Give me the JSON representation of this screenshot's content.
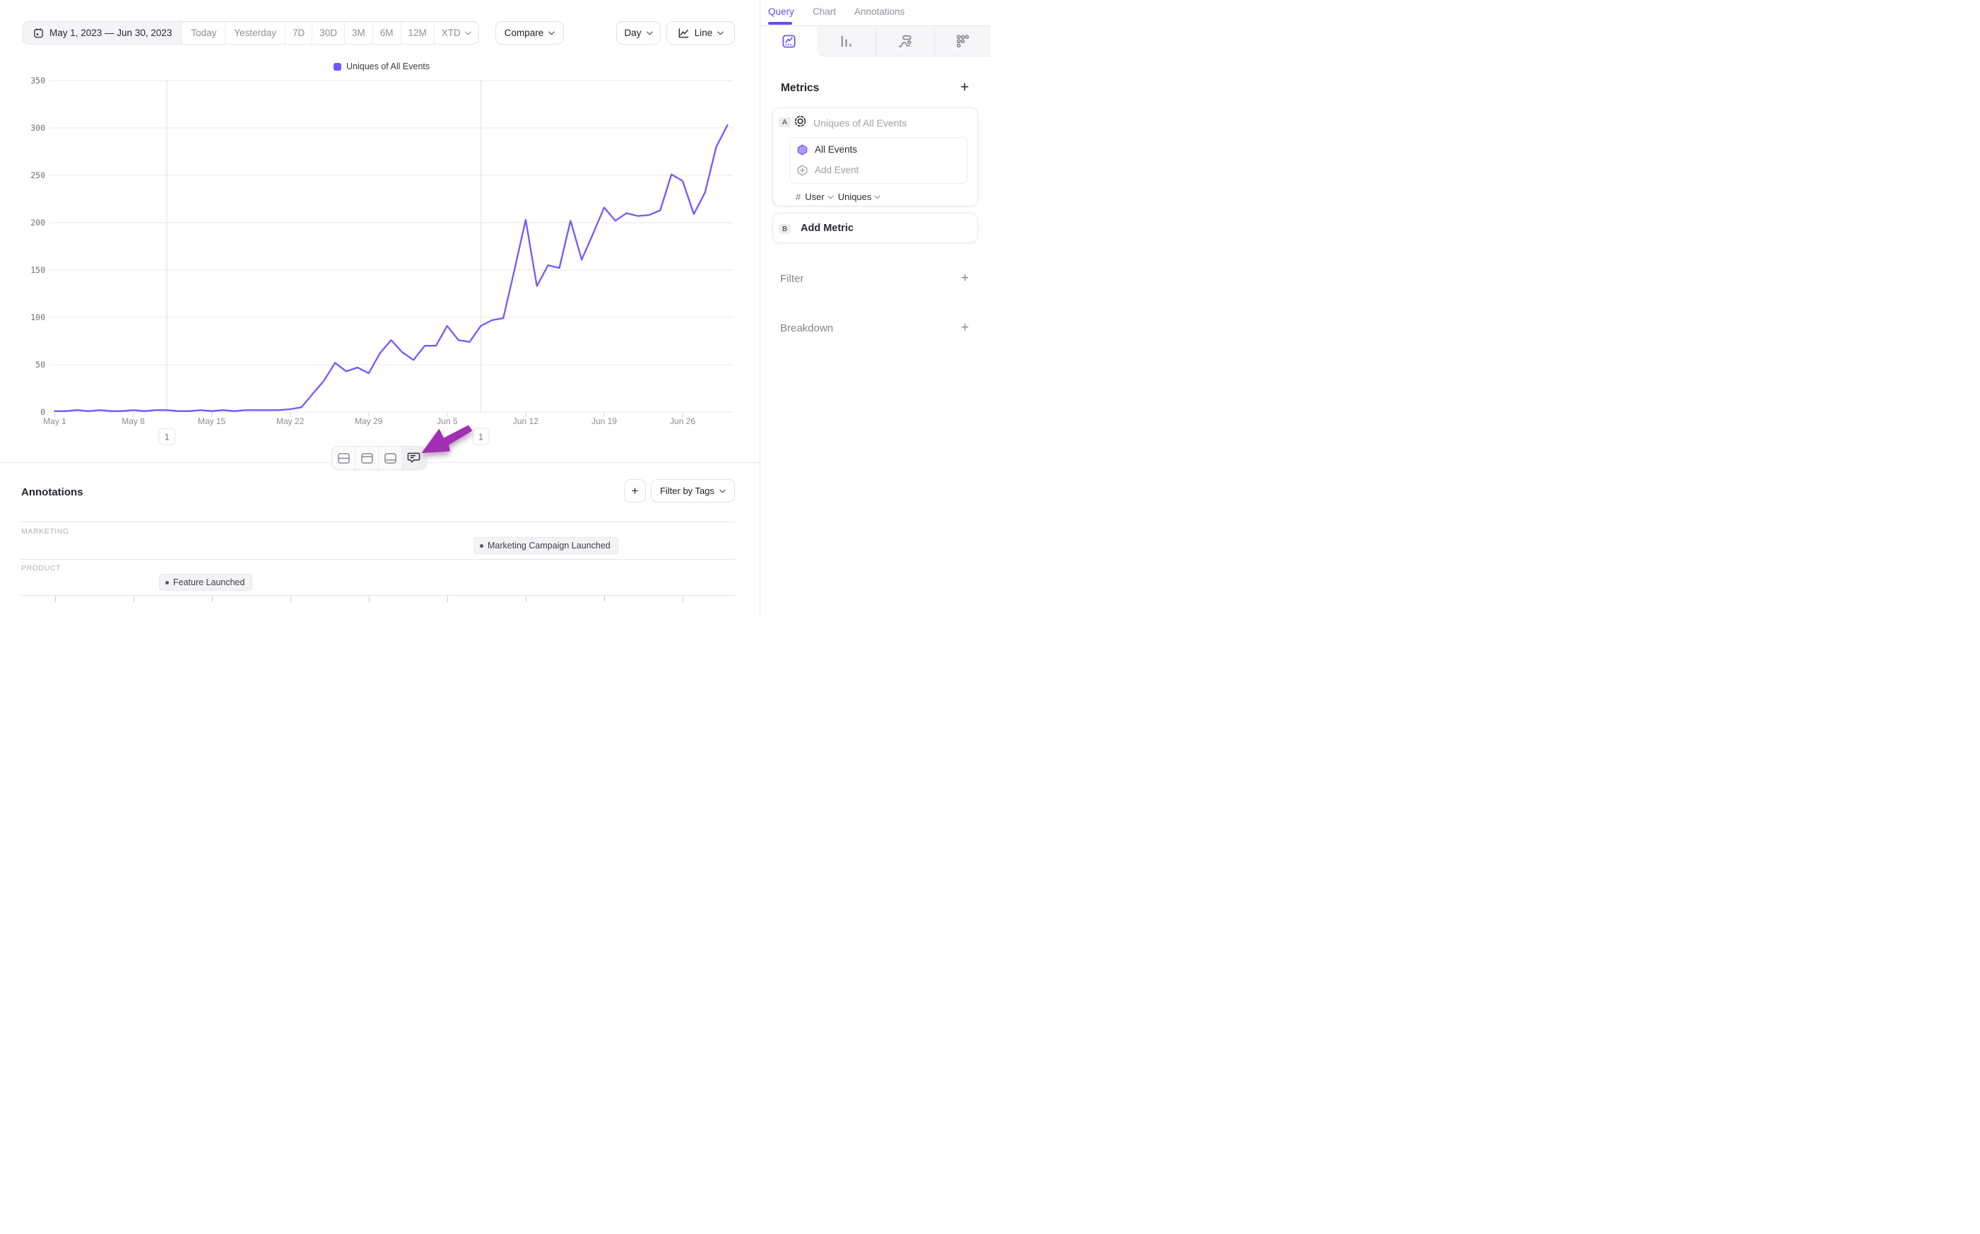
{
  "toolbar": {
    "date_range": "May 1, 2023 — Jun 30, 2023",
    "presets": [
      "Today",
      "Yesterday",
      "7D",
      "30D",
      "3M",
      "6M",
      "12M"
    ],
    "xtd_label": "XTD",
    "compare_label": "Compare",
    "granularity_label": "Day",
    "chart_type_label": "Line"
  },
  "legend": {
    "label": "Uniques of All Events"
  },
  "chart_data": {
    "type": "line",
    "title": "",
    "series_name": "Uniques of All Events",
    "x": [
      "May 1",
      "May 2",
      "May 3",
      "May 4",
      "May 5",
      "May 6",
      "May 7",
      "May 8",
      "May 9",
      "May 10",
      "May 11",
      "May 12",
      "May 13",
      "May 14",
      "May 15",
      "May 16",
      "May 17",
      "May 18",
      "May 19",
      "May 20",
      "May 21",
      "May 22",
      "May 23",
      "May 24",
      "May 25",
      "May 26",
      "May 27",
      "May 28",
      "May 29",
      "May 30",
      "May 31",
      "Jun 1",
      "Jun 2",
      "Jun 3",
      "Jun 4",
      "Jun 5",
      "Jun 6",
      "Jun 7",
      "Jun 8",
      "Jun 9",
      "Jun 10",
      "Jun 11",
      "Jun 12",
      "Jun 13",
      "Jun 14",
      "Jun 15",
      "Jun 16",
      "Jun 17",
      "Jun 18",
      "Jun 19",
      "Jun 20",
      "Jun 21",
      "Jun 22",
      "Jun 23",
      "Jun 24",
      "Jun 25",
      "Jun 26",
      "Jun 27",
      "Jun 28",
      "Jun 29",
      "Jun 30"
    ],
    "values": [
      1,
      1,
      2,
      1,
      2,
      1,
      1,
      2,
      1,
      2,
      2,
      1,
      1,
      2,
      1,
      2,
      1,
      2,
      2,
      2,
      2,
      3,
      5,
      19,
      33,
      52,
      43,
      47,
      41,
      62,
      76,
      63,
      55,
      70,
      70,
      91,
      76,
      74,
      91,
      97,
      99,
      150,
      203,
      133,
      155,
      152,
      202,
      161,
      188,
      216,
      202,
      210,
      207,
      208,
      213,
      251,
      244,
      209,
      232,
      280,
      303
    ],
    "x_tick_labels": [
      "May 1",
      "May 8",
      "May 15",
      "May 22",
      "May 29",
      "Jun 5",
      "Jun 12",
      "Jun 19",
      "Jun 26"
    ],
    "x_tick_day_index": [
      0,
      7,
      14,
      21,
      28,
      35,
      42,
      49,
      56
    ],
    "y_ticks": [
      0,
      50,
      100,
      150,
      200,
      250,
      300,
      350
    ],
    "ylim": [
      0,
      350
    ],
    "grid": true,
    "legend_position": "top-center",
    "annotation_markers": [
      {
        "label": "1",
        "day_index": 10
      },
      {
        "label": "1",
        "day_index": 38
      }
    ]
  },
  "chart_toolbar": {
    "icons": [
      "split-rows-layout",
      "top-panel-layout",
      "bottom-panel-layout",
      "comment-bubble"
    ]
  },
  "annotations_panel": {
    "title": "Annotations",
    "add_label": "+",
    "filter_by_tags_label": "Filter by Tags",
    "groups": [
      {
        "name": "MARKETING",
        "items": [
          {
            "label": "Marketing Campaign Launched"
          }
        ]
      },
      {
        "name": "PRODUCT",
        "items": [
          {
            "label": "Feature Launched"
          }
        ]
      }
    ]
  },
  "sidebar": {
    "tabs": [
      {
        "label": "Query",
        "active": true
      },
      {
        "label": "Chart",
        "active": false
      },
      {
        "label": "Annotations",
        "active": false
      }
    ],
    "chart_type_tabs": [
      "insights-line",
      "bar",
      "flows",
      "retention"
    ],
    "metrics": {
      "title": "Metrics",
      "add_label": "+",
      "metric_a": {
        "badge": "A",
        "name": "Uniques of All Events",
        "event": "All Events",
        "add_event_label": "Add Event",
        "hash": "#",
        "entity": "User",
        "method": "Uniques"
      },
      "metric_b": {
        "badge": "B",
        "label": "Add Metric"
      }
    },
    "filter_label": "Filter",
    "breakdown_label": "Breakdown",
    "section_add_label": "+"
  },
  "colors": {
    "series": "#7856FF",
    "accent": "#5B51F0",
    "arrow": "#A32EB5",
    "grid": "#e9e9ec",
    "annotation_line": "#e2e2e6"
  }
}
